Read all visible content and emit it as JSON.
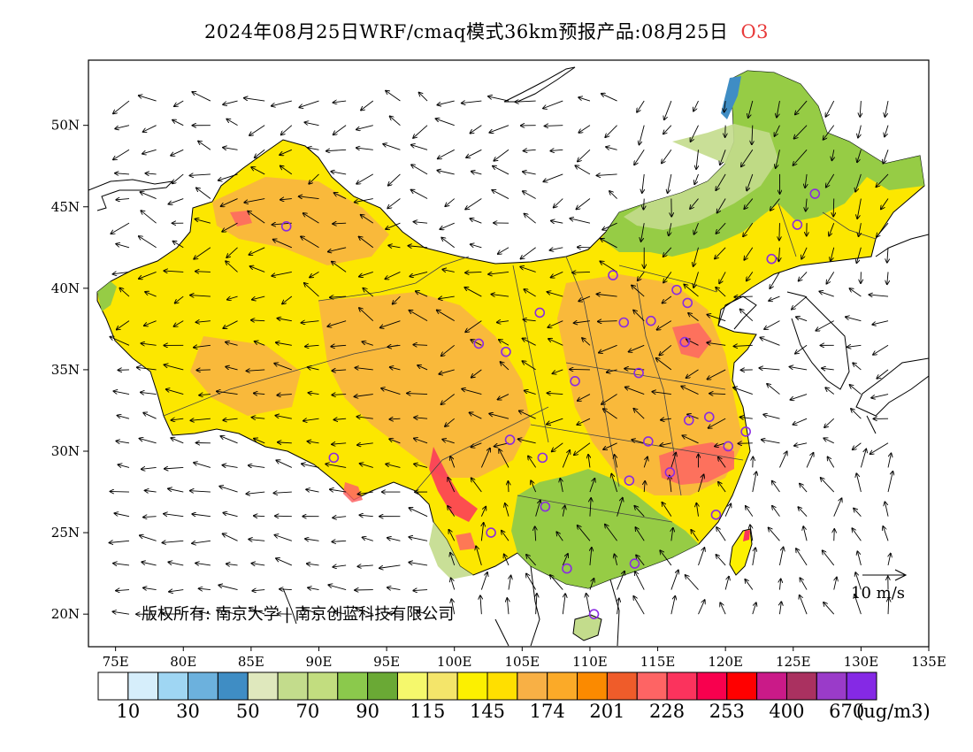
{
  "title": {
    "text": "2024年08月25日WRF/cmaq模式36km预报产品:08月25日",
    "product": "O3"
  },
  "map": {
    "lat_labels": [
      "50N",
      "45N",
      "40N",
      "35N",
      "30N",
      "25N",
      "20N"
    ],
    "lon_labels": [
      "75E",
      "80E",
      "85E",
      "90E",
      "95E",
      "100E",
      "105E",
      "110E",
      "115E",
      "120E",
      "125E",
      "130E",
      "135E"
    ],
    "lon_range": [
      73,
      135
    ],
    "lat_range": [
      18,
      54
    ],
    "copyright": "版权所有: 南京大学 | 南京创蓝科技有限公司",
    "wind_reference": "10 m/s",
    "station_marker_color": "#8a2be2"
  },
  "colorbar": {
    "colors": [
      "#ffffff",
      "#d6eefb",
      "#9fd6f3",
      "#6cb1dd",
      "#3f8dc4",
      "#dfe8bd",
      "#c3dc8c",
      "#c2dd7f",
      "#8bc94c",
      "#6aa935",
      "#f5f86c",
      "#f4e56a",
      "#fcf000",
      "#ffdf00",
      "#f8b045",
      "#fbaa28",
      "#fb8a00",
      "#ef5c2a",
      "#fe6464",
      "#fb335d",
      "#f8004e",
      "#ff0000",
      "#ca1a88",
      "#aa3160",
      "#9a3bc9",
      "#8529e5"
    ],
    "labels": [
      "10",
      "30",
      "50",
      "70",
      "90",
      "115",
      "145",
      "174",
      "201",
      "228",
      "253",
      "400",
      "670"
    ],
    "unit": "(ug/m3)"
  }
}
